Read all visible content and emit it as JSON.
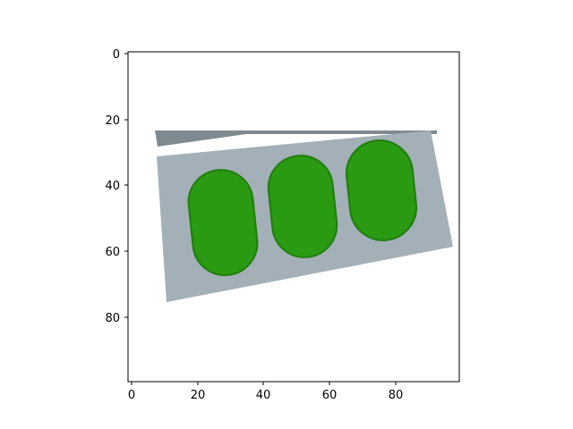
{
  "image": {
    "depiction": "green-pill-domino-tile",
    "tile_color": "#a3b0b7",
    "tile_shadow_color": "#7f8a90",
    "pill_color": "#2a9a12",
    "pill_edge_color": "#1f7d0c",
    "background_color": "#ffffff",
    "pixel_extent": {
      "x": [
        0,
        99
      ],
      "y": [
        0,
        99
      ]
    }
  },
  "axes": {
    "x_ticks": [
      "0",
      "20",
      "40",
      "60",
      "80"
    ],
    "y_ticks": [
      "0",
      "20",
      "40",
      "60",
      "80"
    ],
    "x_tick_values": [
      0,
      20,
      40,
      60,
      80
    ],
    "y_tick_values": [
      0,
      20,
      40,
      60,
      80
    ],
    "y_inverted": true,
    "frame_color": "#000000"
  }
}
